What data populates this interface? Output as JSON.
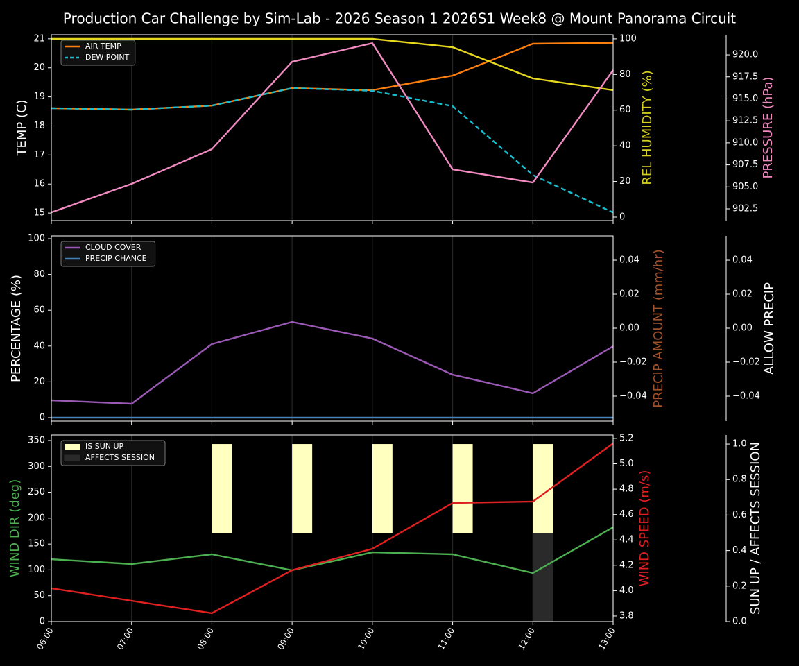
{
  "title": "Production Car Challenge by Sim-Lab - 2026 Season 1 2026S1 Week8 @ Mount Panorama Circuit",
  "chart_data": [
    {
      "type": "line",
      "ylabel": "TEMP (C)",
      "ylabel_color": "#ffffff",
      "ylim": [
        14.74,
        21.14
      ],
      "yticks": [
        15,
        16,
        17,
        18,
        19,
        20,
        21
      ],
      "y2label": "REL HUMIDITY (%)",
      "y2label_color": "#d8d020",
      "y2lim": [
        -1.95,
        102.3
      ],
      "y2ticks": [
        0,
        20,
        40,
        60,
        80,
        100
      ],
      "y3label": "PRESSURE (hPa)",
      "y3label_color": "#f08ac0",
      "y3lim": [
        901.16,
        922.29
      ],
      "y3ticks": [
        902.5,
        {
          "value": 905,
          "label": "905.0"
        },
        907.5,
        {
          "value": 910,
          "label": "910.0"
        },
        912.5,
        {
          "value": 915,
          "label": "915.0"
        },
        917.5,
        {
          "value": 920,
          "label": "920.0"
        }
      ],
      "series": [
        {
          "name": "AIR TEMP",
          "color": "#ff7f0e",
          "axis": "y",
          "values": [
            18.61,
            18.56,
            18.7,
            19.3,
            19.23,
            19.73,
            20.83,
            20.86
          ]
        },
        {
          "name": "DEW POINT",
          "color": "#17becf",
          "axis": "y",
          "dashed": true,
          "values": [
            18.61,
            18.56,
            18.7,
            19.3,
            19.21,
            18.68,
            16.31,
            15.02
          ]
        },
        {
          "color": "#e6d81d",
          "axis": "y2",
          "values": [
            100,
            100,
            100,
            100,
            100,
            95.3,
            77.8,
            71.2
          ]
        },
        {
          "color": "#f08ac0",
          "axis": "y3",
          "values": [
            902.1,
            905.34,
            909.28,
            919.21,
            921.33,
            906.99,
            905.49,
            918.26
          ]
        }
      ]
    },
    {
      "type": "line",
      "ylabel": "PERCENTAGE (%)",
      "ylabel_color": "#ffffff",
      "ylim": [
        -1.94,
        101.55
      ],
      "yticks": [
        0,
        20,
        40,
        60,
        80,
        100
      ],
      "y2label": "PRECIP AMOUNT (mm/hr)",
      "y2label_color": "#a0522d",
      "y2lim": [
        -0.0547,
        0.0543
      ],
      "y2ticks": [
        {
          "value": -0.04,
          "label": "−0.04"
        },
        {
          "value": -0.02,
          "label": "−0.02"
        },
        {
          "value": 0,
          "label": "0.00"
        },
        0.02,
        0.04
      ],
      "y3label": "ALLOW PRECIP",
      "y3label_color": "#ffffff",
      "y3lim": [
        -0.0547,
        0.0543
      ],
      "y3ticks": [
        {
          "value": -0.04,
          "label": "−0.04"
        },
        {
          "value": -0.02,
          "label": "−0.02"
        },
        {
          "value": 0,
          "label": "0.00"
        },
        0.02,
        0.04
      ],
      "series": [
        {
          "name": "CLOUD COVER",
          "color": "#9b59b6",
          "axis": "y",
          "values": [
            9.7,
            7.75,
            41.1,
            53.5,
            44.2,
            24.0,
            13.6,
            39.9
          ]
        },
        {
          "name": "PRECIP CHANCE",
          "color": "#4682b4",
          "axis": "y",
          "values": [
            0,
            0,
            0,
            0,
            0,
            0,
            0,
            0
          ]
        }
      ]
    },
    {
      "type": "line",
      "categories": [
        "06:00",
        "07:00",
        "08:00",
        "09:00",
        "10:00",
        "11:00",
        "12:00",
        "13:00"
      ],
      "ylabel": "WIND DIR (deg)",
      "ylabel_color": "#4caf50",
      "ylim": [
        0,
        360.7
      ],
      "yticks": [
        0,
        50,
        100,
        150,
        200,
        250,
        300,
        350
      ],
      "y2label": "WIND SPEED (m/s)",
      "y2label_color": "#e02020",
      "y2lim": [
        3.756,
        5.227
      ],
      "y2ticks": [
        3.8,
        {
          "value": 4,
          "label": "4.0"
        },
        4.2,
        4.4,
        4.6,
        4.8,
        {
          "value": 5,
          "label": "5.0"
        },
        5.2
      ],
      "y3label": "SUN UP / AFFECTS SESSION",
      "y3label_color": "#ffffff",
      "y3lim": [
        0,
        1.051
      ],
      "y3ticks": [
        {
          "value": 0,
          "label": "0.0"
        },
        0.2,
        0.4,
        0.6,
        0.8,
        {
          "value": 1,
          "label": "1.0"
        }
      ],
      "series": [
        {
          "name": "AFFECTS SESSION",
          "type": "bar",
          "color": "#2a2a2a",
          "axis": "y3",
          "values": [
            0,
            0,
            0,
            0,
            0,
            0,
            0.5,
            0
          ]
        },
        {
          "name": "IS SUN UP",
          "type": "bar",
          "upper_half": true,
          "color": "#ffffc0",
          "axis": "y3",
          "values": [
            0,
            0,
            1,
            1,
            1,
            1,
            1,
            0
          ]
        },
        {
          "color": "#4caf50",
          "axis": "y",
          "values": [
            120.6,
            111.3,
            130.0,
            99.2,
            134.0,
            130.0,
            93.8,
            182.3
          ]
        },
        {
          "color": "#e02020",
          "axis": "y2",
          "values": [
            4.019,
            3.92,
            3.822,
            4.161,
            4.33,
            4.691,
            4.702,
            5.161
          ]
        }
      ]
    }
  ]
}
